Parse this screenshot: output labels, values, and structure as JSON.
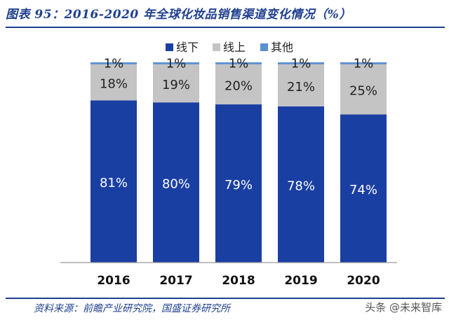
{
  "figure": {
    "title": "图表 95：2016-2020 年全球化妆品销售渠道变化情况（%）",
    "source": "资料来源：前瞻产业研究院，国盛证券研究所",
    "watermark": "头条 @未来智库"
  },
  "chart_data": {
    "type": "bar",
    "stacked": true,
    "categories": [
      "2016",
      "2017",
      "2018",
      "2019",
      "2020"
    ],
    "series": [
      {
        "name": "线下",
        "values": [
          81,
          80,
          79,
          78,
          74
        ],
        "labels": [
          "81%",
          "80%",
          "79%",
          "78%",
          "74%"
        ],
        "color": "#1a3fa3"
      },
      {
        "name": "线上",
        "values": [
          18,
          19,
          20,
          21,
          25
        ],
        "labels": [
          "18%",
          "19%",
          "20%",
          "21%",
          "25%"
        ],
        "color": "#c4c4c4"
      },
      {
        "name": "其他",
        "values": [
          1,
          1,
          1,
          1,
          1
        ],
        "labels": [
          "1%",
          "1%",
          "1%",
          "1%",
          "1%"
        ],
        "color": "#5b8fd0"
      }
    ],
    "ylim": [
      0,
      100
    ],
    "grid": false,
    "legend_position": "top-center"
  }
}
